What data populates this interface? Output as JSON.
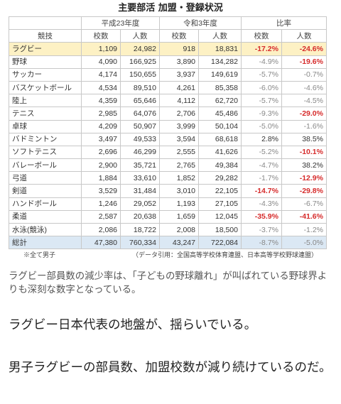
{
  "title": "主要部活 加盟・登録状況",
  "headers": {
    "group1": "平成23年度",
    "group2": "令和3年度",
    "group3": "比率",
    "sport": "競技",
    "schools": "校数",
    "people": "人数"
  },
  "rows": [
    {
      "name": "ラグビー",
      "s23": "1,109",
      "p23": "24,982",
      "s3": "918",
      "p3": "18,831",
      "rs": "-17.2%",
      "rp": "-24.6%"
    },
    {
      "name": "野球",
      "s23": "4,090",
      "p23": "166,925",
      "s3": "3,890",
      "p3": "134,282",
      "rs": "-4.9%",
      "rp": "-19.6%"
    },
    {
      "name": "サッカー",
      "s23": "4,174",
      "p23": "150,655",
      "s3": "3,937",
      "p3": "149,619",
      "rs": "-5.7%",
      "rp": "-0.7%"
    },
    {
      "name": "バスケットボール",
      "s23": "4,534",
      "p23": "89,510",
      "s3": "4,261",
      "p3": "85,358",
      "rs": "-6.0%",
      "rp": "-4.6%"
    },
    {
      "name": "陸上",
      "s23": "4,359",
      "p23": "65,646",
      "s3": "4,112",
      "p3": "62,720",
      "rs": "-5.7%",
      "rp": "-4.5%"
    },
    {
      "name": "テニス",
      "s23": "2,985",
      "p23": "64,076",
      "s3": "2,706",
      "p3": "45,486",
      "rs": "-9.3%",
      "rp": "-29.0%"
    },
    {
      "name": "卓球",
      "s23": "4,209",
      "p23": "50,907",
      "s3": "3,999",
      "p3": "50,104",
      "rs": "-5.0%",
      "rp": "-1.6%"
    },
    {
      "name": "バドミントン",
      "s23": "3,497",
      "p23": "49,533",
      "s3": "3,594",
      "p3": "68,618",
      "rs": "2.8%",
      "rp": "38.5%"
    },
    {
      "name": "ソフトテニス",
      "s23": "2,696",
      "p23": "46,299",
      "s3": "2,555",
      "p3": "41,626",
      "rs": "-5.2%",
      "rp": "-10.1%"
    },
    {
      "name": "バレーボール",
      "s23": "2,900",
      "p23": "35,721",
      "s3": "2,765",
      "p3": "49,384",
      "rs": "-4.7%",
      "rp": "38.2%"
    },
    {
      "name": "弓道",
      "s23": "1,884",
      "p23": "33,610",
      "s3": "1,852",
      "p3": "29,282",
      "rs": "-1.7%",
      "rp": "-12.9%"
    },
    {
      "name": "剣道",
      "s23": "3,529",
      "p23": "31,484",
      "s3": "3,010",
      "p3": "22,105",
      "rs": "-14.7%",
      "rp": "-29.8%"
    },
    {
      "name": "ハンドボール",
      "s23": "1,246",
      "p23": "29,052",
      "s3": "1,193",
      "p3": "27,105",
      "rs": "-4.3%",
      "rp": "-6.7%"
    },
    {
      "name": "柔道",
      "s23": "2,587",
      "p23": "20,638",
      "s3": "1,659",
      "p3": "12,045",
      "rs": "-35.9%",
      "rp": "-41.6%"
    },
    {
      "name": "水泳(競泳)",
      "s23": "2,086",
      "p23": "18,722",
      "s3": "2,008",
      "p3": "18,500",
      "rs": "-3.7%",
      "rp": "-1.2%"
    }
  ],
  "total": {
    "name": "総計",
    "s23": "47,380",
    "p23": "760,334",
    "s3": "43,247",
    "p3": "722,084",
    "rs": "-8.7%",
    "rp": "-5.0%"
  },
  "note_left": "※全て男子",
  "note_right": "（データ引用：全国高等学校体育連盟、日本高等学校野球連盟）",
  "paragraph1": "ラグビー部員数の減少率は、「子どもの野球離れ」が叫ばれている野球界よりも深刻な数字となっている。",
  "paragraph2": "ラグビー日本代表の地盤が、揺らいでいる。",
  "paragraph3": "男子ラグビーの部員数、加盟校数が減り続けているのだ。",
  "colors": {
    "highlight_row": "#fdf1c4",
    "total_row": "#dbe8f4",
    "negative_strong": "#d62b2b"
  }
}
